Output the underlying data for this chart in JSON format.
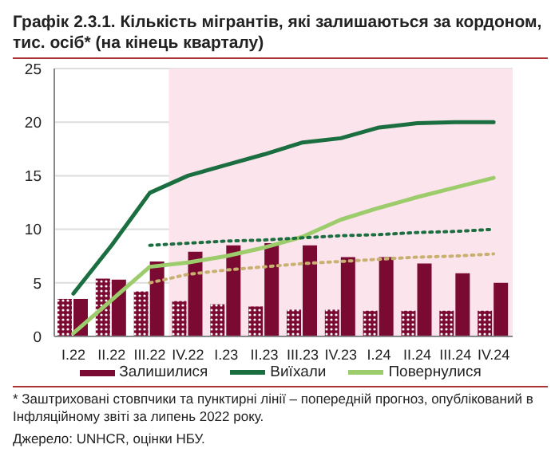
{
  "chart_data": {
    "type": "bar",
    "title": "Графік 2.3.1. Кількість мігрантів, які залишаються за кордоном, тис. осіб* (на кінець кварталу)",
    "categories": [
      "I.22",
      "II.22",
      "III.22",
      "IV.22",
      "I.23",
      "II.23",
      "III.23",
      "IV.23",
      "I.24",
      "II.24",
      "III.24",
      "IV.24"
    ],
    "series": [
      {
        "line_style": "dotted",
        "color": "#7a0a32",
        "values": [
          3.5,
          5.4,
          4.2,
          3.3,
          3.0,
          2.8,
          2.5,
          2.5,
          2.4,
          2.4,
          2.4,
          2.4
        ]
      },
      {
        "name": "Залишилися",
        "color": "#7a0a32",
        "values": [
          3.5,
          5.3,
          7.0,
          7.9,
          8.5,
          8.7,
          8.5,
          7.4,
          7.4,
          6.8,
          5.9,
          5.0
        ]
      },
      {
        "type": "line",
        "name": "Виїхали",
        "color": "#1b6e40",
        "values": [
          4.0,
          8.5,
          13.4,
          15.0,
          16.0,
          17.0,
          18.1,
          18.5,
          19.5,
          19.9,
          20.0,
          20.0
        ]
      },
      {
        "type": "line",
        "name": "Повернулися",
        "color": "#9ccc6c",
        "values": [
          0.3,
          3.4,
          6.5,
          6.9,
          7.5,
          8.3,
          9.3,
          10.9,
          12.0,
          13.0,
          13.9,
          14.8
        ]
      },
      {
        "type": "line",
        "line_style": "dotted",
        "color": "#1b6e40",
        "values": [
          null,
          null,
          8.5,
          8.7,
          8.9,
          9.0,
          9.2,
          9.4,
          9.5,
          9.7,
          9.8,
          10.0
        ]
      },
      {
        "type": "line",
        "line_style": "dotted",
        "color": "#c8b070",
        "values": [
          null,
          null,
          5.0,
          5.8,
          6.2,
          6.5,
          6.8,
          7.0,
          7.2,
          7.4,
          7.5,
          7.7
        ]
      }
    ],
    "ylim": [
      0,
      25
    ],
    "yticks": [
      0,
      5,
      10,
      15,
      20,
      25
    ],
    "grid": "y",
    "legend": "bottom",
    "bands": [
      {
        "axis": "x",
        "from": "IV.22",
        "to": "IV.24",
        "color": "#fce4ec"
      }
    ],
    "annotations": [
      "* Заштриховані стовпчики та пунктирні лінії – попередній прогноз, опублікований в Інфляційному звіті за липень 2022 року.",
      "Джерело: UNHCR, оцінки НБУ."
    ]
  }
}
